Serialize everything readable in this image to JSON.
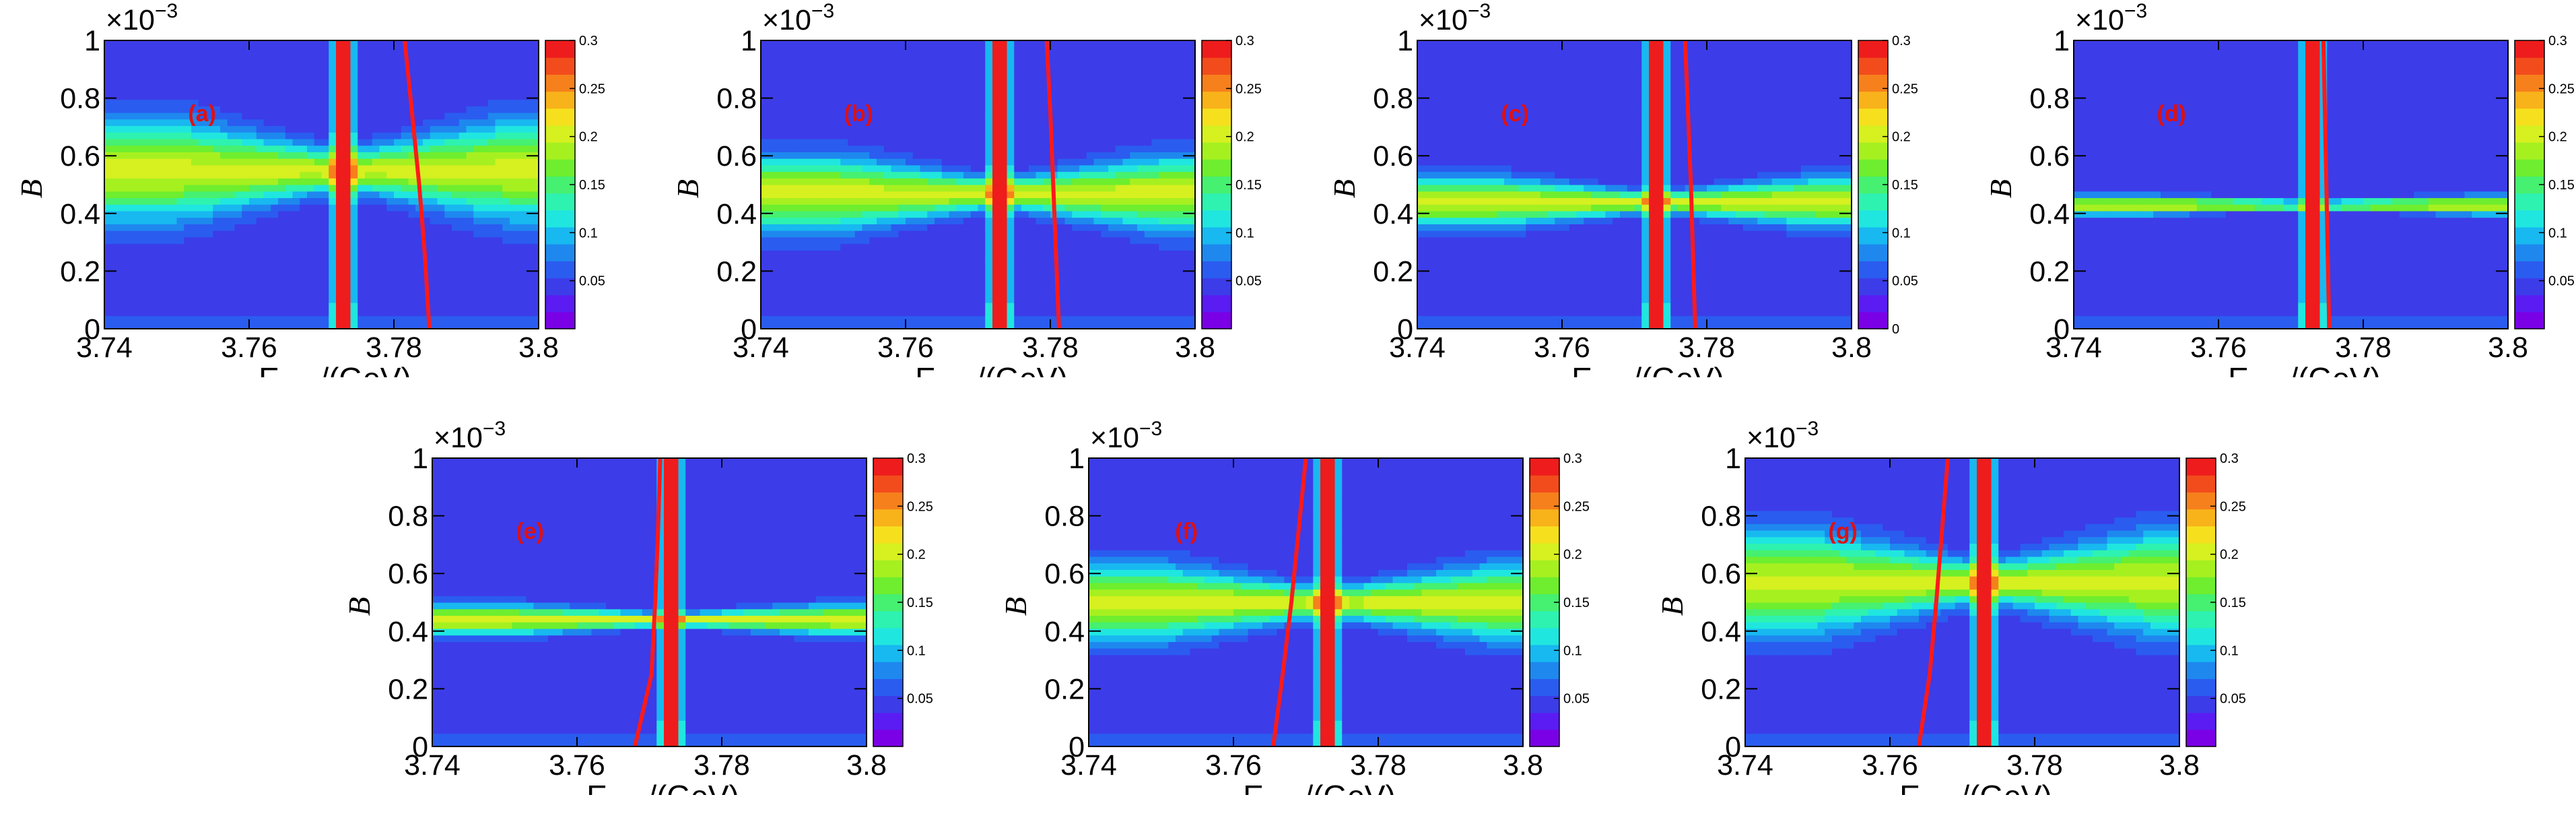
{
  "colors": {
    "palette": [
      "#7a00e6",
      "#5a1cf2",
      "#3c3ce8",
      "#2a5cf0",
      "#1e88ee",
      "#18b8f0",
      "#20e6e0",
      "#2ef2b0",
      "#46f070",
      "#6eee2e",
      "#a6f020",
      "#d6f020",
      "#f6e01e",
      "#f8b21a",
      "#f6801c",
      "#f24c1c",
      "#ee1c1c"
    ],
    "curve": "#ff1a1a"
  },
  "chart_data": [
    {
      "id": "a",
      "type": "heatmap",
      "panel_label": "(a)",
      "xlabel": "E",
      "xlabel_sub": "c.m.",
      "xlabel_unit": "/(GeV)",
      "ylabel": "B",
      "y_multiplier": "×10",
      "x_range": [
        3.74,
        3.8
      ],
      "ylim": [
        0,
        1
      ],
      "x_ticks": [
        "3.74",
        "3.76",
        "3.78",
        "3.8"
      ],
      "y_ticks": [
        "0",
        "0.2",
        "0.4",
        "0.6",
        "0.8",
        "1"
      ],
      "z_range": [
        0,
        0.3
      ],
      "colorbar_ticks": [
        "0.05",
        "0.1",
        "0.15",
        "0.2",
        "0.25",
        "0.3"
      ],
      "resonance_x": 3.773,
      "band_center_y": 0.55,
      "band_width": 0.16,
      "curve_x": [
        3.7815,
        3.7825,
        3.7835,
        3.7843,
        3.7849
      ],
      "curve_y": [
        1.0,
        0.75,
        0.5,
        0.25,
        0.0
      ]
    },
    {
      "id": "b",
      "type": "heatmap",
      "panel_label": "(b)",
      "xlabel": "E",
      "xlabel_sub": "c.m.",
      "xlabel_unit": "/(GeV)",
      "ylabel": "B",
      "y_multiplier": "×10",
      "x_range": [
        3.74,
        3.8
      ],
      "ylim": [
        0,
        1
      ],
      "x_ticks": [
        "3.74",
        "3.76",
        "3.78",
        "3.8"
      ],
      "y_ticks": [
        "0",
        "0.2",
        "0.4",
        "0.6",
        "0.8",
        "1"
      ],
      "z_range": [
        0,
        0.3
      ],
      "colorbar_ticks": [
        "0.05",
        "0.1",
        "0.15",
        "0.2",
        "0.25",
        "0.3"
      ],
      "resonance_x": 3.773,
      "band_center_y": 0.47,
      "band_width": 0.12,
      "curve_x": [
        3.7795,
        3.78,
        3.7804,
        3.7808,
        3.7812
      ],
      "curve_y": [
        1.0,
        0.75,
        0.5,
        0.25,
        0.0
      ]
    },
    {
      "id": "c",
      "type": "heatmap",
      "panel_label": "(c)",
      "xlabel": "E",
      "xlabel_sub": "c.m.",
      "xlabel_unit": "/(GeV)",
      "ylabel": "B",
      "y_multiplier": "×10",
      "x_range": [
        3.74,
        3.8
      ],
      "ylim": [
        0,
        1
      ],
      "x_ticks": [
        "3.74",
        "3.76",
        "3.78",
        "3.8"
      ],
      "y_ticks": [
        "0",
        "0.2",
        "0.4",
        "0.6",
        "0.8",
        "1"
      ],
      "z_range": [
        0,
        0.3
      ],
      "colorbar_ticks": [
        "0",
        "0.05",
        "0.1",
        "0.15",
        "0.2",
        "0.25",
        "0.3"
      ],
      "resonance_x": 3.773,
      "band_center_y": 0.44,
      "band_width": 0.08,
      "curve_x": [
        3.777,
        3.7774,
        3.7778,
        3.7781,
        3.7784
      ],
      "curve_y": [
        1.0,
        0.75,
        0.5,
        0.25,
        0.0
      ]
    },
    {
      "id": "d",
      "type": "heatmap",
      "panel_label": "(d)",
      "xlabel": "E",
      "xlabel_sub": "c.m.",
      "xlabel_unit": "/(GeV)",
      "ylabel": "B",
      "y_multiplier": "×10",
      "x_range": [
        3.74,
        3.8
      ],
      "ylim": [
        0,
        1
      ],
      "x_ticks": [
        "3.74",
        "3.76",
        "3.78",
        "3.8"
      ],
      "y_ticks": [
        "0",
        "0.2",
        "0.4",
        "0.6",
        "0.8",
        "1"
      ],
      "z_range": [
        0,
        0.3
      ],
      "colorbar_ticks": [
        "0.05",
        "0.1",
        "0.15",
        "0.2",
        "0.25",
        "0.3"
      ],
      "resonance_x": 3.773,
      "band_center_y": 0.43,
      "band_width": 0.03,
      "curve_x": [
        3.7745,
        3.7747,
        3.7749,
        3.7751,
        3.7753
      ],
      "curve_y": [
        1.0,
        0.75,
        0.5,
        0.25,
        0.0
      ]
    },
    {
      "id": "e",
      "type": "heatmap",
      "panel_label": "(e)",
      "xlabel": "E",
      "xlabel_sub": "c.m.",
      "xlabel_unit": "/(GeV)",
      "ylabel": "B",
      "y_multiplier": "×10",
      "x_range": [
        3.74,
        3.8
      ],
      "ylim": [
        0,
        1
      ],
      "x_ticks": [
        "3.74",
        "3.76",
        "3.78",
        "3.8"
      ],
      "y_ticks": [
        "0",
        "0.2",
        "0.4",
        "0.6",
        "0.8",
        "1"
      ],
      "z_range": [
        0,
        0.3
      ],
      "colorbar_ticks": [
        "0.05",
        "0.1",
        "0.15",
        "0.2",
        "0.25",
        "0.3"
      ],
      "resonance_x": 3.773,
      "band_center_y": 0.44,
      "band_width": 0.05,
      "curve_x": [
        3.7715,
        3.7712,
        3.7708,
        3.7703,
        3.768
      ],
      "curve_y": [
        1.0,
        0.75,
        0.5,
        0.25,
        0.0
      ]
    },
    {
      "id": "f",
      "type": "heatmap",
      "panel_label": "(f)",
      "xlabel": "E",
      "xlabel_sub": "c.m.",
      "xlabel_unit": "/(GeV)",
      "ylabel": "B",
      "y_multiplier": "×10",
      "x_range": [
        3.74,
        3.8
      ],
      "ylim": [
        0,
        1
      ],
      "x_ticks": [
        "3.74",
        "3.76",
        "3.78",
        "3.8"
      ],
      "y_ticks": [
        "0",
        "0.2",
        "0.4",
        "0.6",
        "0.8",
        "1"
      ],
      "z_range": [
        0,
        0.3
      ],
      "colorbar_ticks": [
        "0.05",
        "0.1",
        "0.15",
        "0.2",
        "0.25",
        "0.3"
      ],
      "resonance_x": 3.773,
      "band_center_y": 0.5,
      "band_width": 0.12,
      "curve_x": [
        3.77,
        3.769,
        3.768,
        3.7668,
        3.7655
      ],
      "curve_y": [
        1.0,
        0.75,
        0.5,
        0.25,
        0.0
      ]
    },
    {
      "id": "g",
      "type": "heatmap",
      "panel_label": "(g)",
      "xlabel": "E",
      "xlabel_sub": "c.m.",
      "xlabel_unit": "/(GeV)",
      "ylabel": "B",
      "y_multiplier": "×10",
      "x_range": [
        3.74,
        3.8
      ],
      "ylim": [
        0,
        1
      ],
      "x_ticks": [
        "3.74",
        "3.76",
        "3.78",
        "3.8"
      ],
      "y_ticks": [
        "0",
        "0.2",
        "0.4",
        "0.6",
        "0.8",
        "1"
      ],
      "z_range": [
        0,
        0.3
      ],
      "colorbar_ticks": [
        "0.05",
        "0.1",
        "0.15",
        "0.2",
        "0.25",
        "0.3"
      ],
      "resonance_x": 3.773,
      "band_center_y": 0.57,
      "band_width": 0.16,
      "curve_x": [
        3.768,
        3.7672,
        3.7664,
        3.7655,
        3.764
      ],
      "curve_y": [
        1.0,
        0.75,
        0.5,
        0.25,
        0.0
      ]
    }
  ]
}
